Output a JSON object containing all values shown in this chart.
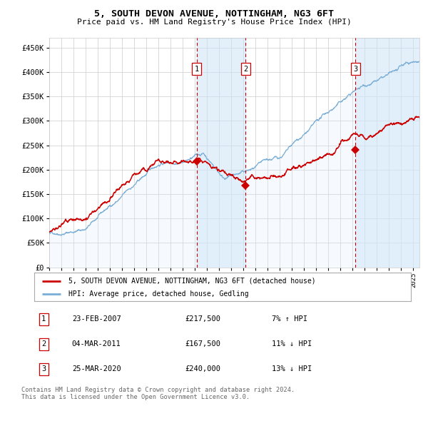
{
  "title": "5, SOUTH DEVON AVENUE, NOTTINGHAM, NG3 6FT",
  "subtitle": "Price paid vs. HM Land Registry's House Price Index (HPI)",
  "ylim": [
    0,
    470000
  ],
  "yticks": [
    0,
    50000,
    100000,
    150000,
    200000,
    250000,
    300000,
    350000,
    400000,
    450000
  ],
  "ytick_labels": [
    "£0",
    "£50K",
    "£100K",
    "£150K",
    "£200K",
    "£250K",
    "£300K",
    "£350K",
    "£400K",
    "£450K"
  ],
  "sale_color": "#cc0000",
  "hpi_color": "#7aaed6",
  "hpi_fill_color": "#ddeeff",
  "vline_color": "#cc0000",
  "transactions": [
    {
      "id": 1,
      "date_num": 2007.14,
      "price": 217500,
      "label": "23-FEB-2007",
      "price_str": "£217,500",
      "change": "7% ↑ HPI"
    },
    {
      "id": 2,
      "date_num": 2011.17,
      "price": 167500,
      "label": "04-MAR-2011",
      "price_str": "£167,500",
      "change": "11% ↓ HPI"
    },
    {
      "id": 3,
      "date_num": 2020.23,
      "price": 240000,
      "label": "25-MAR-2020",
      "price_str": "£240,000",
      "change": "13% ↓ HPI"
    }
  ],
  "legend_sale_label": "5, SOUTH DEVON AVENUE, NOTTINGHAM, NG3 6FT (detached house)",
  "legend_hpi_label": "HPI: Average price, detached house, Gedling",
  "footnote": "Contains HM Land Registry data © Crown copyright and database right 2024.\nThis data is licensed under the Open Government Licence v3.0.",
  "xmin": 1995.0,
  "xmax": 2025.5,
  "background_color": "#ffffff",
  "grid_color": "#cccccc"
}
